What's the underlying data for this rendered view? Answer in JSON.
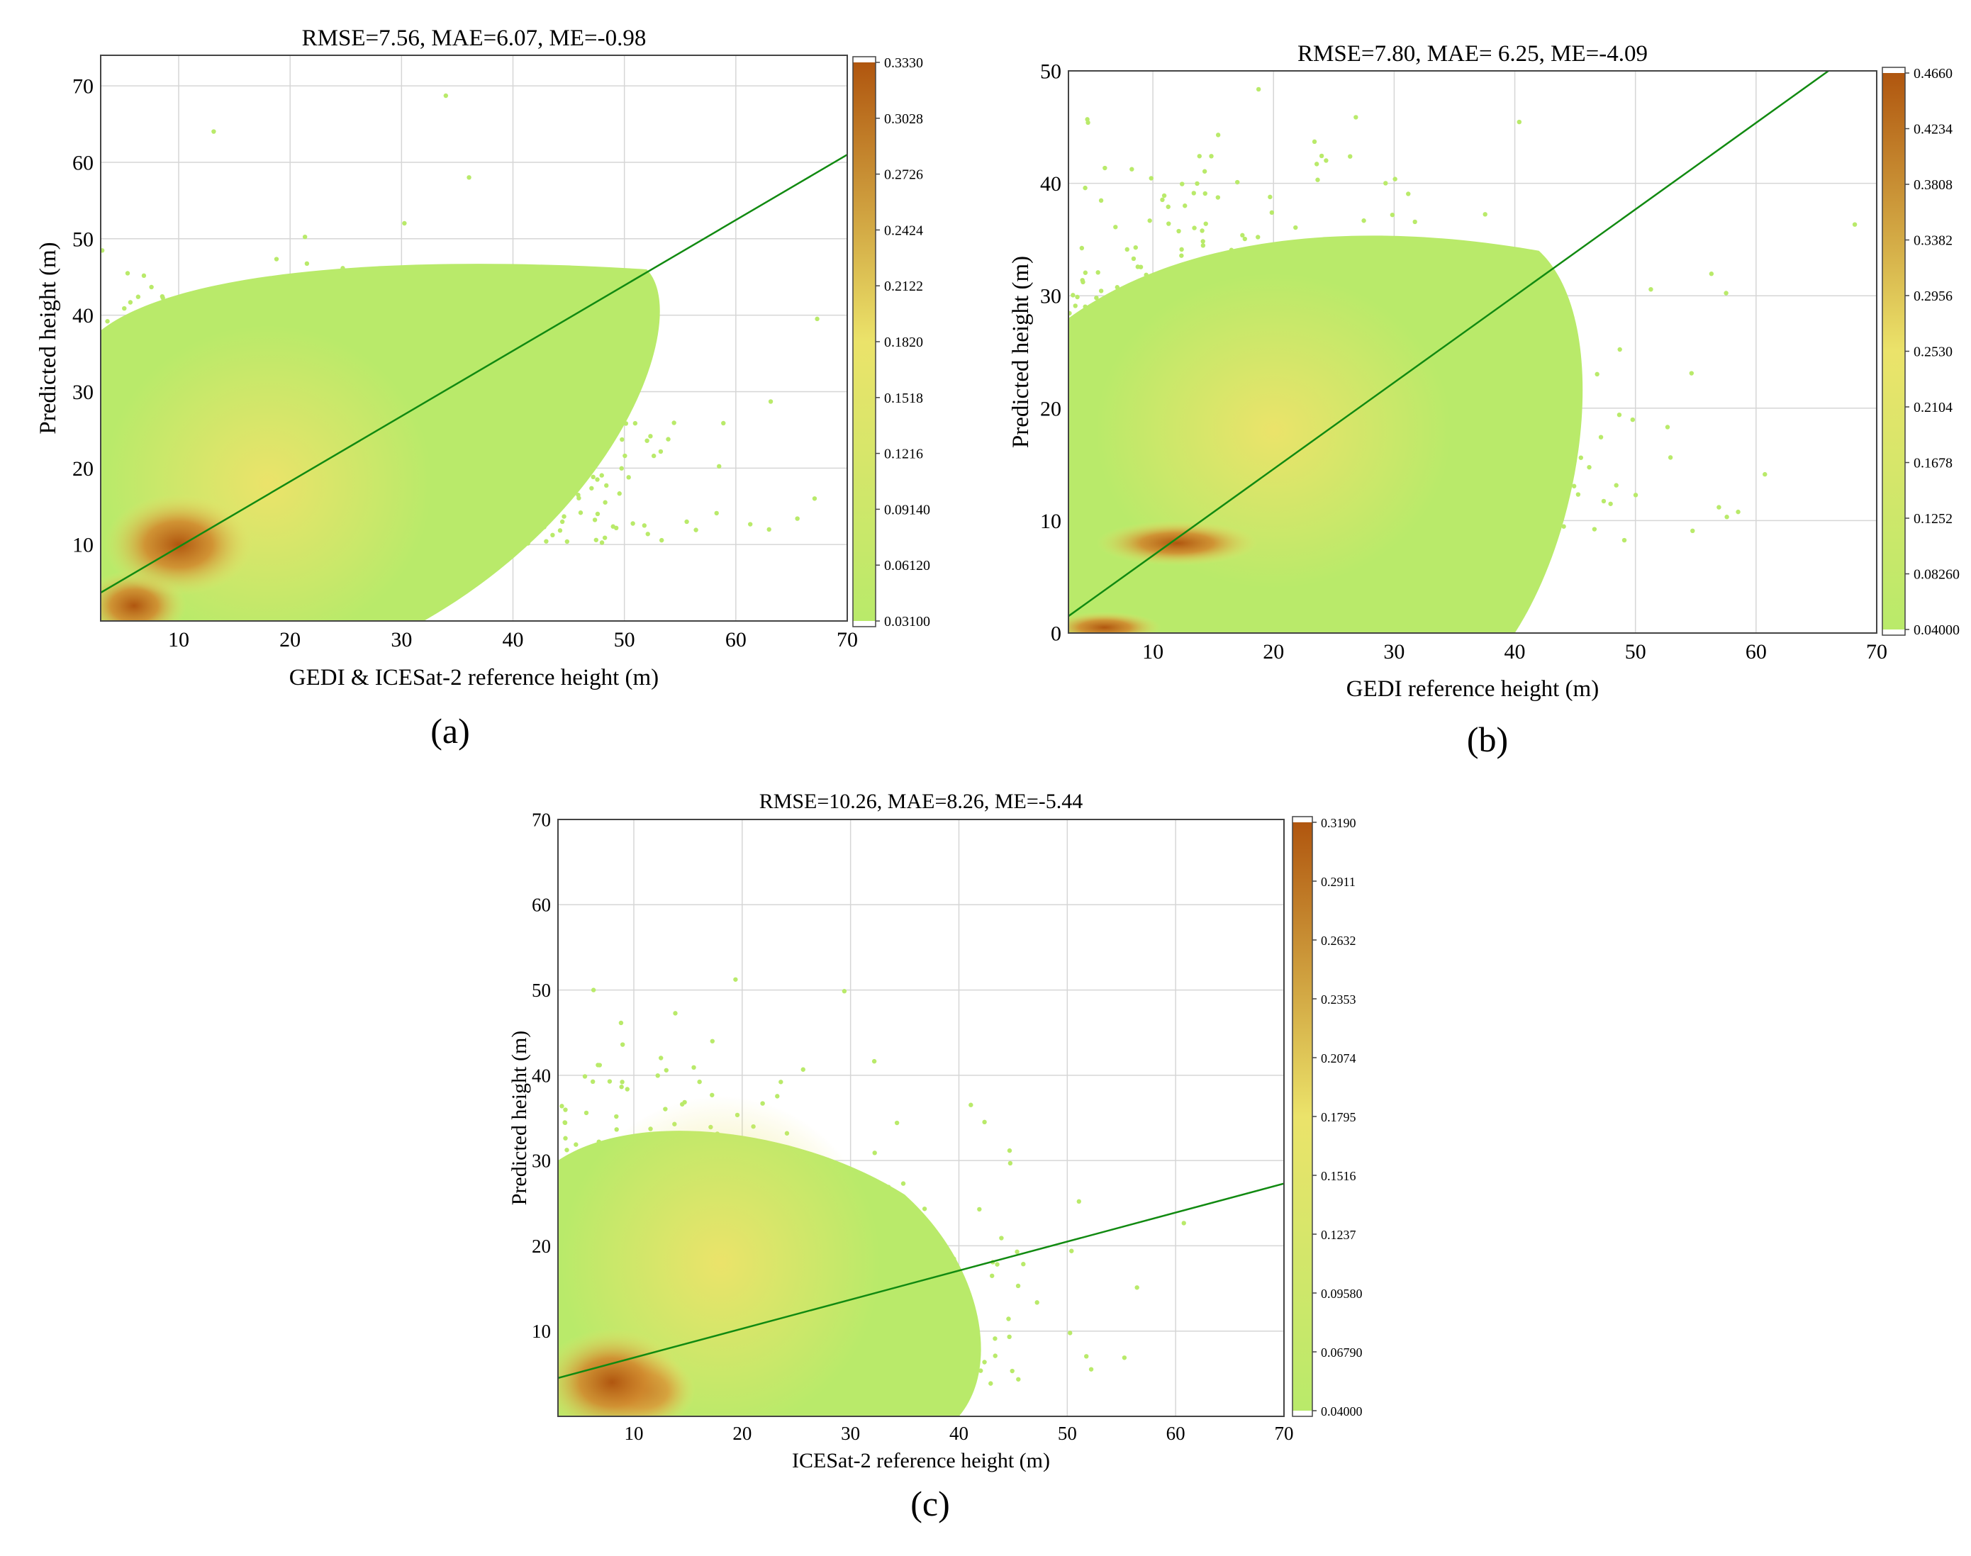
{
  "colors": {
    "density_low": "#b9ea6a",
    "density_mid": "#ebe36a",
    "density_high": "#b0560f",
    "regression_line": "#118a11",
    "grid": "#d6d6d6",
    "frame": "#444444"
  },
  "chart_data": [
    {
      "type": "scatter",
      "panel_label": "(a)",
      "title": "RMSE=7.56, MAE=6.07, ME=-0.98",
      "xlabel": "GEDI & ICESat-2 reference height (m)",
      "ylabel": "Predicted height (m)",
      "xlim": [
        3,
        70
      ],
      "ylim": [
        0,
        74
      ],
      "x_ticks": [
        10,
        20,
        30,
        40,
        50,
        60,
        70
      ],
      "y_ticks": [
        10,
        20,
        30,
        40,
        50,
        60,
        70
      ],
      "grid": true,
      "regression_line": [
        [
          3,
          3.7
        ],
        [
          70,
          61
        ]
      ],
      "point_color_scale": "density",
      "density_hotspots": [
        [
          6,
          2
        ],
        [
          10,
          10
        ]
      ],
      "colorbar": {
        "ticks": [
          "0.3330",
          "0.3028",
          "0.2726",
          "0.2424",
          "0.2122",
          "0.1820",
          "0.1518",
          "0.1216",
          "0.09140",
          "0.06120",
          "0.03100"
        ],
        "min": 0.031,
        "max": 0.333
      }
    },
    {
      "type": "scatter",
      "panel_label": "(b)",
      "title": "RMSE=7.80, MAE= 6.25, ME=-4.09",
      "xlabel": "GEDI reference height (m)",
      "ylabel": "Predicted height (m)",
      "xlim": [
        3,
        70
      ],
      "ylim": [
        0,
        50
      ],
      "x_ticks": [
        10,
        20,
        30,
        40,
        50,
        60,
        70
      ],
      "y_ticks": [
        0,
        10,
        20,
        30,
        40,
        50
      ],
      "grid": true,
      "regression_line": [
        [
          3,
          1.5
        ],
        [
          66,
          50
        ]
      ],
      "point_color_scale": "density",
      "density_hotspots": [
        [
          6,
          0.5
        ],
        [
          12,
          8
        ]
      ],
      "colorbar": {
        "ticks": [
          "0.4660",
          "0.4234",
          "0.3808",
          "0.3382",
          "0.2956",
          "0.2530",
          "0.2104",
          "0.1678",
          "0.1252",
          "0.08260",
          "0.04000"
        ],
        "min": 0.04,
        "max": 0.466
      }
    },
    {
      "type": "scatter",
      "panel_label": "(c)",
      "title": "RMSE=10.26, MAE=8.26, ME=-5.44",
      "xlabel": "ICESat-2 reference height (m)",
      "ylabel": "Predicted height (m)",
      "xlim": [
        3,
        70
      ],
      "ylim": [
        0,
        70
      ],
      "x_ticks": [
        10,
        20,
        30,
        40,
        50,
        60,
        70
      ],
      "y_ticks": [
        10,
        20,
        30,
        40,
        50,
        60,
        70
      ],
      "grid": true,
      "regression_line": [
        [
          3,
          4.5
        ],
        [
          70,
          27.3
        ]
      ],
      "point_color_scale": "density",
      "density_hotspots": [
        [
          11,
          3
        ],
        [
          8,
          4
        ]
      ],
      "colorbar": {
        "ticks": [
          "0.3190",
          "0.2911",
          "0.2632",
          "0.2353",
          "0.2074",
          "0.1795",
          "0.1516",
          "0.1237",
          "0.09580",
          "0.06790",
          "0.04000"
        ],
        "min": 0.04,
        "max": 0.319
      }
    }
  ]
}
